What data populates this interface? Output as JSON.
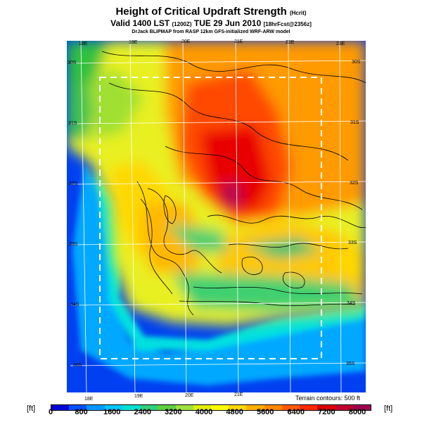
{
  "header": {
    "title": "Height of Critical Updraft Strength",
    "title_suffix": "(Hcrit)",
    "subtitle": "Valid 1400 LST",
    "subtitle_mid": "(1200Z)",
    "subtitle_date": "TUE 29 Jun 2010",
    "subtitle_suffix": "[18hrFcst@2356z]",
    "credit": "DrJack BLIPMAP from RASP 12km GFS-initialized WRF-ARW model"
  },
  "map": {
    "lon_labels_top": [
      "18E",
      "19E",
      "20E",
      "21E",
      "22E",
      "23E"
    ],
    "lon_labels_bottom": [
      "18E",
      "19E",
      "20E",
      "21E"
    ],
    "lat_labels_left": [
      "30S",
      "31S",
      "32S",
      "33S",
      "34S",
      "35S"
    ],
    "lat_labels_right": [
      "30S",
      "31S",
      "32S",
      "33S",
      "34S",
      "35S"
    ],
    "terrain_note": "Terrain contours: 500 ft"
  },
  "colorbar": {
    "unit": "[ft]",
    "ticks": [
      "0",
      "800",
      "1600",
      "2400",
      "3200",
      "4000",
      "4800",
      "5600",
      "6400",
      "7200",
      "8000"
    ],
    "colors": [
      "#0000d6",
      "#0050ff",
      "#0098ff",
      "#00c8ff",
      "#00e0d0",
      "#30d080",
      "#60d040",
      "#a0e040",
      "#e0f000",
      "#ffff00",
      "#ffd800",
      "#ffb000",
      "#ff8800",
      "#ff5a00",
      "#ff2800",
      "#e00000",
      "#c00030",
      "#a00050"
    ]
  }
}
